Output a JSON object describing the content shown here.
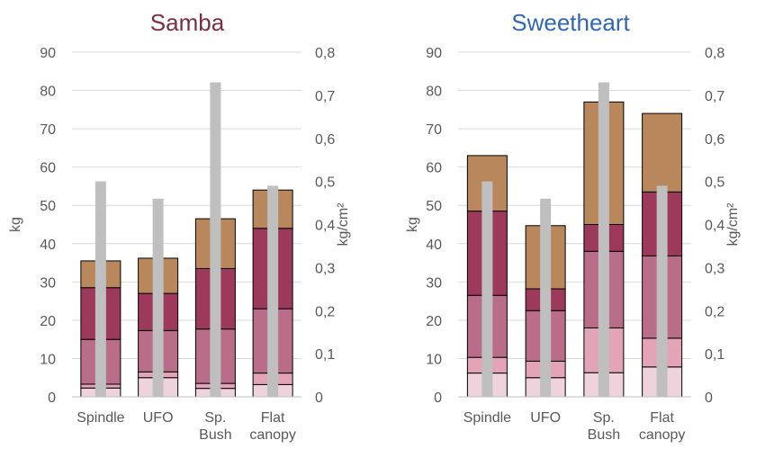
{
  "colors": {
    "seg1": "#efd3dc",
    "seg2": "#e2a4b6",
    "seg3": "#b96d88",
    "seg4": "#9d3a5b",
    "seg5": "#b8875b",
    "overlay": "#bfbfbf",
    "grid": "#d9d9d9",
    "axis_text": "#595959"
  },
  "chart_data": [
    {
      "type": "bar",
      "title": "Samba",
      "title_color": "#7a2f3f",
      "categories": [
        "Spindle",
        "UFO",
        "Sp.\nBush",
        "Flat\ncanopy"
      ],
      "ylabel": "kg",
      "y2label": "kg/cm²",
      "ylim": [
        0,
        90
      ],
      "yticks": [
        0,
        10,
        20,
        30,
        40,
        50,
        60,
        70,
        80,
        90
      ],
      "y2lim": [
        0,
        0.8
      ],
      "y2ticks": [
        "0",
        "0,1",
        "0,2",
        "0,3",
        "0,4",
        "0,5",
        "0,6",
        "0,7",
        "0,8"
      ],
      "grid": true,
      "stacked_kg_cumulative": [
        [
          2.3,
          3.3,
          15,
          28.5,
          35.5
        ],
        [
          5,
          6.5,
          17.3,
          27,
          36.2
        ],
        [
          2.2,
          3.5,
          17.7,
          33.5,
          46.5
        ],
        [
          3.2,
          6.2,
          23,
          44,
          54
        ]
      ],
      "overlay_kg_per_cm2": [
        0.5,
        0.46,
        0.73,
        0.49
      ]
    },
    {
      "type": "bar",
      "title": "Sweetheart",
      "title_color": "#3067b0",
      "categories": [
        "Spindle",
        "UFO",
        "Sp.\nBush",
        "Flat\ncanopy"
      ],
      "ylabel": "kg",
      "y2label": "kg/cm²",
      "ylim": [
        0,
        90
      ],
      "yticks": [
        0,
        10,
        20,
        30,
        40,
        50,
        60,
        70,
        80,
        90
      ],
      "y2lim": [
        0,
        0.8
      ],
      "y2ticks": [
        "0",
        "0,1",
        "0,2",
        "0,3",
        "0,4",
        "0,5",
        "0,6",
        "0,7",
        "0,8"
      ],
      "grid": true,
      "stacked_kg_cumulative": [
        [
          6.2,
          10.3,
          26.5,
          48.5,
          63
        ],
        [
          5,
          9.3,
          22.5,
          28.2,
          44.7
        ],
        [
          6.3,
          18,
          38,
          45,
          77
        ],
        [
          7.8,
          15.3,
          36.8,
          53.5,
          74
        ]
      ],
      "overlay_kg_per_cm2": [
        0.5,
        0.46,
        0.73,
        0.49
      ]
    }
  ]
}
